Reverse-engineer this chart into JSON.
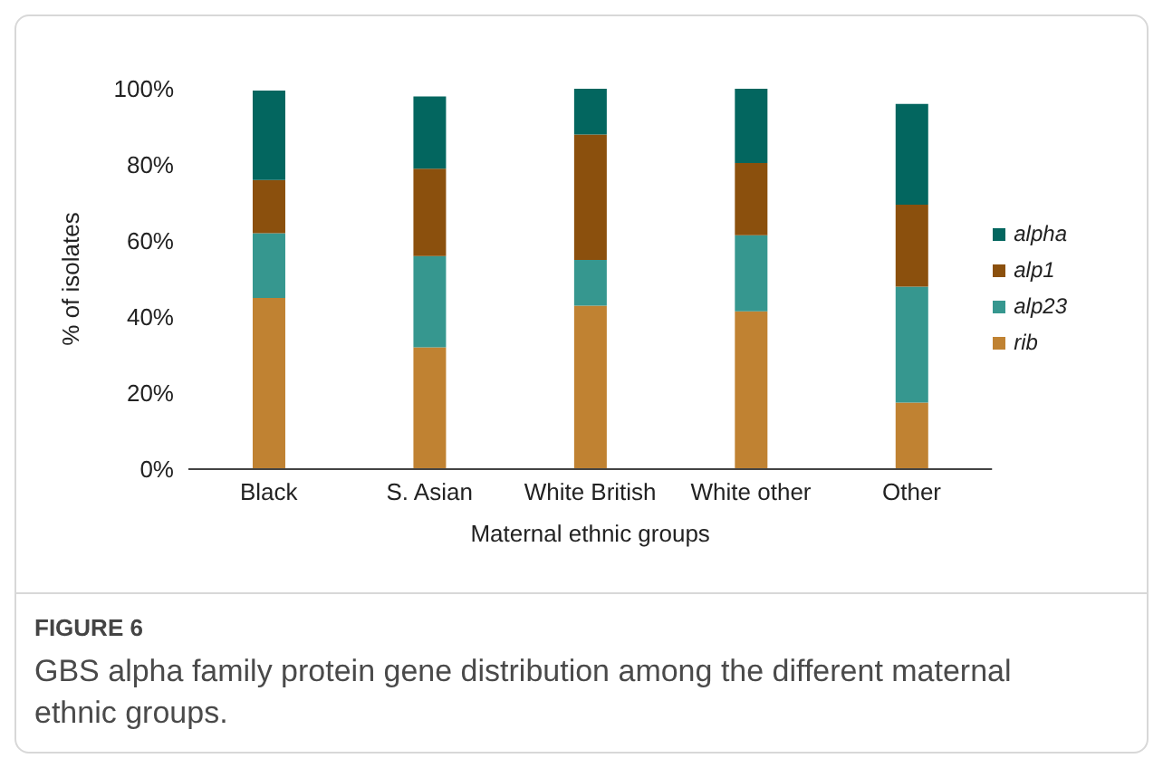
{
  "chart_data": {
    "type": "bar",
    "title": "FIGURE 6",
    "subtitle": "GBS alpha family protein gene distribution among the different maternal ethnic groups.",
    "xlabel": "Maternal ethnic groups",
    "ylabel": "% of isolates",
    "categories": [
      "Black",
      "S. Asian",
      "White British",
      "White other",
      "Other"
    ],
    "stacked": true,
    "legend": "right",
    "ylim": [
      0,
      100
    ],
    "yticks": [
      {
        "value": 0,
        "label": "0%"
      },
      {
        "value": 20,
        "label": "20%"
      },
      {
        "value": 40,
        "label": "40%"
      },
      {
        "value": 60,
        "label": "60%"
      },
      {
        "value": 80,
        "label": "80%"
      },
      {
        "value": 100,
        "label": "100%"
      }
    ],
    "grid": false,
    "series": [
      {
        "name": "rib",
        "color": "#c08232",
        "values": [
          45,
          32,
          43,
          41.5,
          17.5
        ]
      },
      {
        "name": "alp23",
        "color": "#36978f",
        "values": [
          17,
          24,
          12,
          20,
          30.5
        ]
      },
      {
        "name": "alp1",
        "color": "#8b500d",
        "values": [
          14,
          23,
          33,
          19,
          21.5
        ]
      },
      {
        "name": "alpha",
        "color": "#03665f",
        "values": [
          23.5,
          19,
          12,
          19.5,
          26.5
        ]
      }
    ]
  }
}
